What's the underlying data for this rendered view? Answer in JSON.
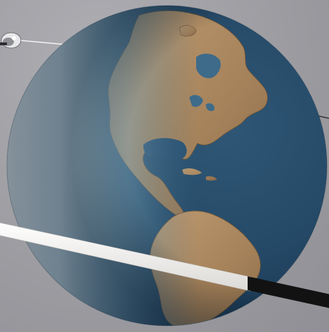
{
  "scene": {
    "subject": "",
    "colors": {
      "background": "#9e9ea3",
      "ocean_deep": "#1f3f5c",
      "ocean_light": "#5f8fa8",
      "land": "#b08a62",
      "land_dark": "#7a5e40",
      "atmosphere": "#e6eef2",
      "ring": "#f2f0ee",
      "ring_dark": "#111111"
    }
  }
}
